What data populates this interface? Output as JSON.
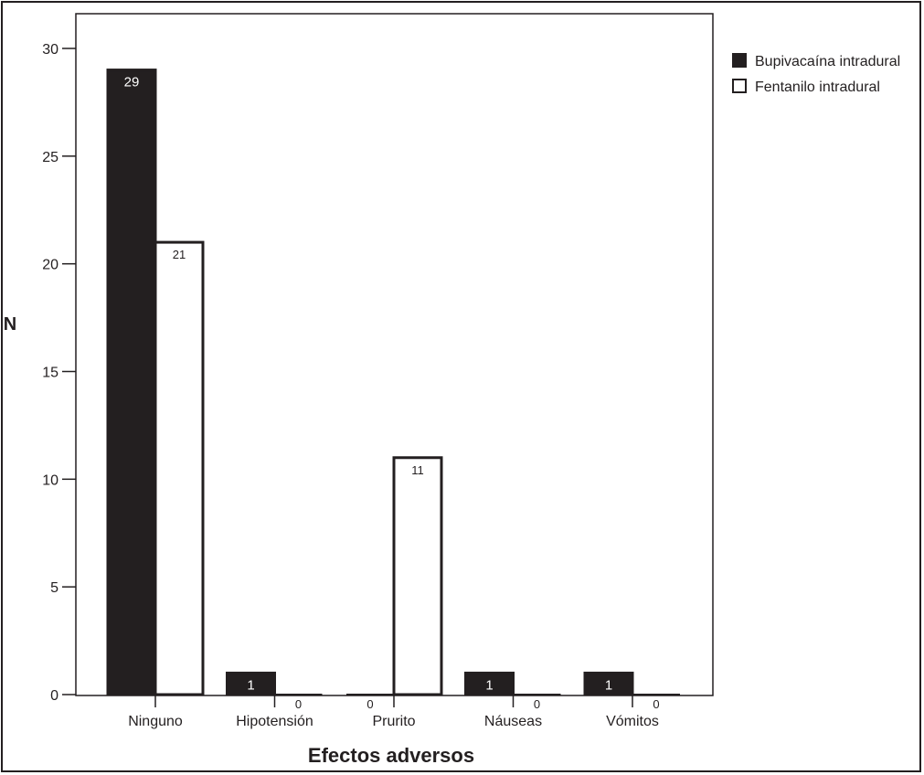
{
  "chart_data": {
    "type": "bar",
    "title": "",
    "xlabel": "Efectos adversos",
    "ylabel": "N",
    "ylim": [
      0,
      30
    ],
    "yticks": [
      0,
      5,
      10,
      15,
      20,
      25,
      30
    ],
    "grid": false,
    "legend_position": "top-right",
    "categories": [
      "Ninguno",
      "Hipotensión",
      "Prurito",
      "Náuseas",
      "Vómitos"
    ],
    "series": [
      {
        "name": "Bupivacaína intradural",
        "values": [
          29,
          1,
          0,
          1,
          1
        ],
        "fill": "#231f20",
        "stroke": "#231f20",
        "label_color": "#ffffff"
      },
      {
        "name": "Fentanilo intradural",
        "values": [
          21,
          0,
          11,
          0,
          0
        ],
        "fill": "#ffffff",
        "stroke": "#231f20",
        "label_color": "#231f20"
      }
    ]
  }
}
